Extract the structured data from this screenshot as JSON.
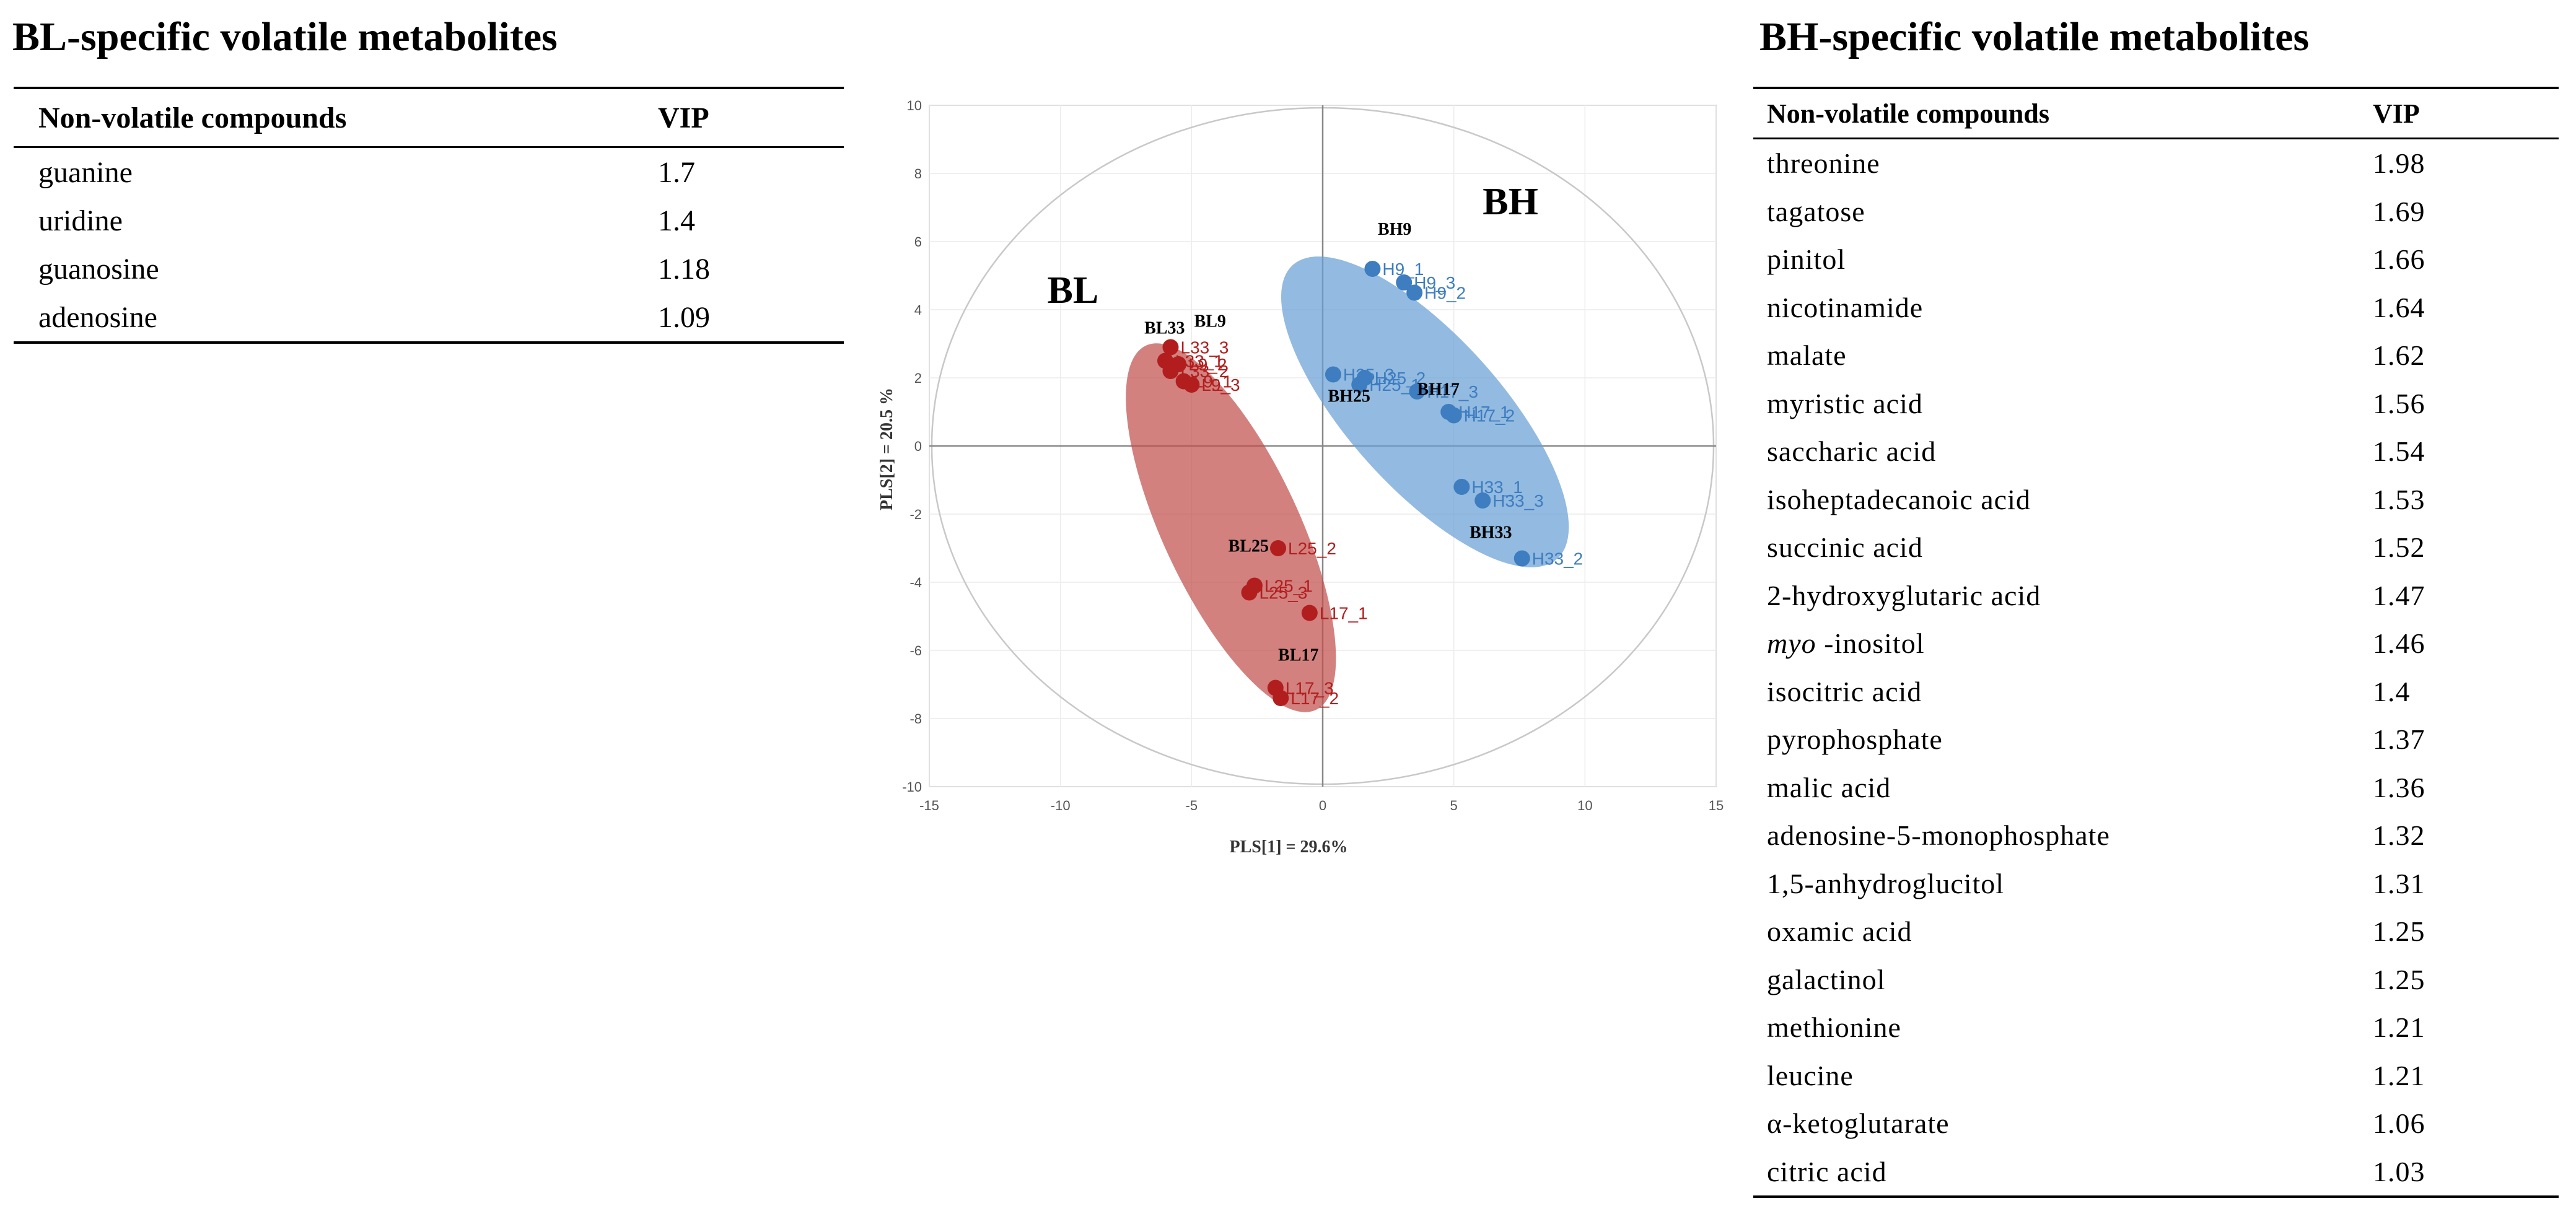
{
  "left_panel": {
    "title": "BL-specific volatile metabolites",
    "header": [
      "Non-volatile compounds",
      "VIP"
    ],
    "rows": [
      [
        "guanine",
        "1.7"
      ],
      [
        "uridine",
        "1.4"
      ],
      [
        "guanosine",
        "1.18"
      ],
      [
        "adenosine",
        "1.09"
      ]
    ]
  },
  "right_panel": {
    "title": "BH-specific volatile metabolites",
    "header": [
      "Non-volatile compounds",
      "VIP"
    ],
    "rows": [
      [
        "threonine",
        "1.98"
      ],
      [
        "tagatose",
        "1.69"
      ],
      [
        "pinitol",
        "1.66"
      ],
      [
        "nicotinamide",
        "1.64"
      ],
      [
        "malate",
        "1.62"
      ],
      [
        "myristic acid",
        "1.56"
      ],
      [
        "saccharic acid",
        "1.54"
      ],
      [
        "isoheptadecanoic acid",
        "1.53"
      ],
      [
        "succinic acid",
        "1.52"
      ],
      [
        "2-hydroxyglutaric acid",
        "1.47"
      ],
      [
        "myo -inositol",
        "1.46"
      ],
      [
        "isocitric acid",
        "1.4"
      ],
      [
        "pyrophosphate",
        "1.37"
      ],
      [
        "malic acid",
        "1.36"
      ],
      [
        "adenosine-5-monophosphate",
        "1.32"
      ],
      [
        "1,5-anhydroglucitol",
        "1.31"
      ],
      [
        "oxamic acid",
        "1.25"
      ],
      [
        "galactinol",
        "1.25"
      ],
      [
        "methionine",
        "1.21"
      ],
      [
        "leucine",
        "1.21"
      ],
      [
        "α-ketoglutarate",
        "1.06"
      ],
      [
        "citric acid",
        "1.03"
      ]
    ]
  },
  "chart_data": {
    "type": "scatter",
    "xlabel": "PLS[1] = 29.6%",
    "ylabel": "PLS[2] = 20.5 %",
    "xlim": [
      -15,
      15
    ],
    "ylim": [
      -10,
      10
    ],
    "xticks": [
      -15,
      -10,
      -5,
      0,
      5,
      10,
      15
    ],
    "yticks": [
      10,
      8,
      6,
      4,
      2,
      0,
      -2,
      -4,
      -6,
      -8,
      -10
    ],
    "colors": {
      "BL": "#b21e1e",
      "BH": "#3d7dc0",
      "BL_ellipse": "#c0504d",
      "BH_ellipse": "#6a9fd4"
    },
    "group_labels": [
      "BL",
      "BH"
    ],
    "series": [
      {
        "name": "BL",
        "points": [
          {
            "label": "L33_3",
            "x": -5.8,
            "y": 2.9
          },
          {
            "label": "L33_1",
            "x": -6.0,
            "y": 2.5
          },
          {
            "label": "L33_2",
            "x": -5.8,
            "y": 2.2
          },
          {
            "label": "L9_2",
            "x": -5.5,
            "y": 2.4
          },
          {
            "label": "L9_3",
            "x": -5.0,
            "y": 1.8
          },
          {
            "label": "L9_1",
            "x": -5.3,
            "y": 1.9
          },
          {
            "label": "L25_2",
            "x": -1.7,
            "y": -3.0
          },
          {
            "label": "L25_3",
            "x": -2.8,
            "y": -4.3
          },
          {
            "label": "L25_1",
            "x": -2.6,
            "y": -4.1
          },
          {
            "label": "L17_1",
            "x": -0.5,
            "y": -4.9
          },
          {
            "label": "L17_3",
            "x": -1.8,
            "y": -7.1
          },
          {
            "label": "L17_2",
            "x": -1.6,
            "y": -7.4
          }
        ]
      },
      {
        "name": "BH",
        "points": [
          {
            "label": "H9_1",
            "x": 1.9,
            "y": 5.2
          },
          {
            "label": "H9_3",
            "x": 3.1,
            "y": 4.8
          },
          {
            "label": "H9_2",
            "x": 3.5,
            "y": 4.5
          },
          {
            "label": "H25_2",
            "x": 1.6,
            "y": 2.0
          },
          {
            "label": "H25_3",
            "x": 0.4,
            "y": 2.1
          },
          {
            "label": "H25_1",
            "x": 1.4,
            "y": 1.8
          },
          {
            "label": "H17_3",
            "x": 3.6,
            "y": 1.6
          },
          {
            "label": "H17_1",
            "x": 4.8,
            "y": 1.0
          },
          {
            "label": "H17_2",
            "x": 5.0,
            "y": 0.9
          },
          {
            "label": "H33_1",
            "x": 5.3,
            "y": -1.2
          },
          {
            "label": "H33_3",
            "x": 6.1,
            "y": -1.6
          },
          {
            "label": "H33_2",
            "x": 7.6,
            "y": -3.3
          }
        ]
      }
    ],
    "annotations": [
      "BL33",
      "BL9",
      "BL25",
      "BL17",
      "BH9",
      "BH25",
      "BH17",
      "BH33"
    ]
  }
}
